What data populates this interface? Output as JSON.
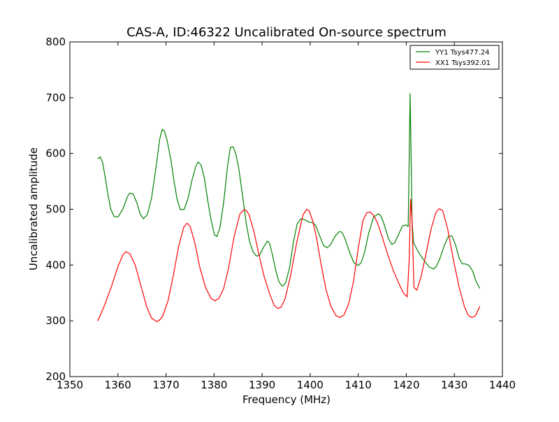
{
  "chart_data": {
    "type": "line",
    "title": "CAS-A, ID:46322 Uncalibrated On-source spectrum",
    "xlabel": "Frequency (MHz)",
    "ylabel": "Uncalibrated amplitude",
    "xlim": [
      1350,
      1440
    ],
    "ylim": [
      200,
      800
    ],
    "xticks": [
      1350,
      1360,
      1370,
      1380,
      1390,
      1400,
      1410,
      1420,
      1430,
      1440
    ],
    "yticks": [
      200,
      300,
      400,
      500,
      600,
      700,
      800
    ],
    "grid": false,
    "legend_position": "top-right",
    "series": [
      {
        "name": "YY1 Tsys477.24",
        "color": "#008000",
        "x": [
          1355.8,
          1356.3,
          1356.8,
          1357.3,
          1357.9,
          1358.5,
          1359.2,
          1360,
          1361,
          1362,
          1362.5,
          1363.2,
          1364,
          1364.6,
          1365.3,
          1366.1,
          1367,
          1368,
          1368.7,
          1369.2,
          1369.6,
          1370.2,
          1371,
          1371.7,
          1372.3,
          1373,
          1373.8,
          1374.6,
          1375.4,
          1376.2,
          1376.7,
          1377.3,
          1378,
          1378.7,
          1379.4,
          1380.1,
          1380.6,
          1381.2,
          1382,
          1382.8,
          1383.4,
          1384,
          1384.6,
          1385.2,
          1386,
          1386.7,
          1387.4,
          1388.1,
          1388.8,
          1389.5,
          1390.3,
          1391.1,
          1391.5,
          1392.1,
          1392.9,
          1393.5,
          1394.2,
          1394.9,
          1395.7,
          1396.5,
          1397.3,
          1398.1,
          1399,
          1399.7,
          1400.6,
          1401.2,
          1402,
          1402.8,
          1403.5,
          1404.2,
          1405.2,
          1406.1,
          1406.6,
          1407.3,
          1408.2,
          1409.1,
          1410,
          1410.6,
          1411.3,
          1412.2,
          1413.2,
          1414.2,
          1414.7,
          1415.4,
          1416.3,
          1417,
          1417.6,
          1418.3,
          1419.2,
          1419.9,
          1420.4,
          1420.6,
          1420.8,
          1421,
          1421.2,
          1421.5,
          1422.1,
          1422.9,
          1423.8,
          1424.8,
          1425.7,
          1426.3,
          1427,
          1427.9,
          1428.8,
          1429.5,
          1430.3,
          1431,
          1431.7,
          1432.3,
          1433.1,
          1433.8,
          1434.5,
          1435.3
        ],
        "values": [
          590,
          594,
          584,
          560,
          528,
          500,
          487,
          486,
          500,
          523,
          529,
          527,
          510,
          492,
          483,
          490,
          520,
          580,
          626,
          643,
          641,
          625,
          590,
          549,
          518,
          499,
          500,
          520,
          552,
          577,
          585,
          579,
          555,
          515,
          480,
          454,
          451,
          466,
          512,
          577,
          611,
          612,
          597,
          570,
          520,
          475,
          442,
          424,
          416,
          418,
          432,
          443,
          440,
          420,
          388,
          370,
          362,
          368,
          395,
          440,
          474,
          483,
          481,
          477,
          476,
          470,
          452,
          435,
          431,
          436,
          452,
          460,
          459,
          446,
          423,
          404,
          399,
          404,
          422,
          458,
          486,
          492,
          488,
          473,
          447,
          437,
          440,
          453,
          470,
          472,
          469,
          590,
          707,
          600,
          480,
          440,
          430,
          418,
          407,
          396,
          393,
          398,
          412,
          435,
          452,
          452,
          435,
          412,
          402,
          402,
          399,
          389,
          371,
          358
        ]
      },
      {
        "name": "XX1 Tsys392.01",
        "color": "#ff0000",
        "x": [
          1355.8,
          1357,
          1358.5,
          1360,
          1361,
          1361.7,
          1362.5,
          1363.6,
          1364.8,
          1366,
          1367,
          1368,
          1368.5,
          1369.3,
          1370.4,
          1371.5,
          1372.6,
          1373.7,
          1374.4,
          1375,
          1376,
          1377,
          1378.2,
          1379.4,
          1380.2,
          1381,
          1382,
          1383,
          1384.2,
          1385.4,
          1386.2,
          1386.7,
          1387.3,
          1388.3,
          1389.3,
          1390.4,
          1391.5,
          1392.5,
          1393.3,
          1394,
          1394.8,
          1395.9,
          1397.2,
          1398.5,
          1399.3,
          1399.8,
          1400.5,
          1401.3,
          1402.3,
          1403.3,
          1404.3,
          1405.4,
          1406.2,
          1407,
          1408,
          1409,
          1410,
          1411,
          1411.8,
          1412.5,
          1413.2,
          1414,
          1415,
          1416.1,
          1417.3,
          1418.4,
          1419.4,
          1420.2,
          1420.6,
          1420.9,
          1421.2,
          1421.6,
          1422.2,
          1423.1,
          1424.1,
          1425.2,
          1426.2,
          1426.9,
          1427.6,
          1428.6,
          1429.8,
          1431,
          1432.1,
          1432.9,
          1433.6,
          1434.4,
          1435.3
        ],
        "values": [
          300,
          323,
          358,
          397,
          418,
          424,
          420,
          400,
          362,
          325,
          305,
          299,
          300,
          308,
          335,
          380,
          432,
          468,
          475,
          470,
          440,
          397,
          360,
          340,
          336,
          340,
          358,
          394,
          452,
          492,
          499,
          498,
          490,
          460,
          420,
          380,
          350,
          328,
          322,
          325,
          340,
          380,
          440,
          490,
          500,
          497,
          480,
          450,
          400,
          356,
          326,
          309,
          306,
          310,
          330,
          370,
          430,
          480,
          494,
          495,
          489,
          476,
          450,
          420,
          390,
          368,
          350,
          343,
          410,
          518,
          480,
          360,
          355,
          380,
          420,
          466,
          495,
          501,
          497,
          465,
          410,
          360,
          325,
          310,
          306,
          309,
          326
        ]
      }
    ]
  }
}
